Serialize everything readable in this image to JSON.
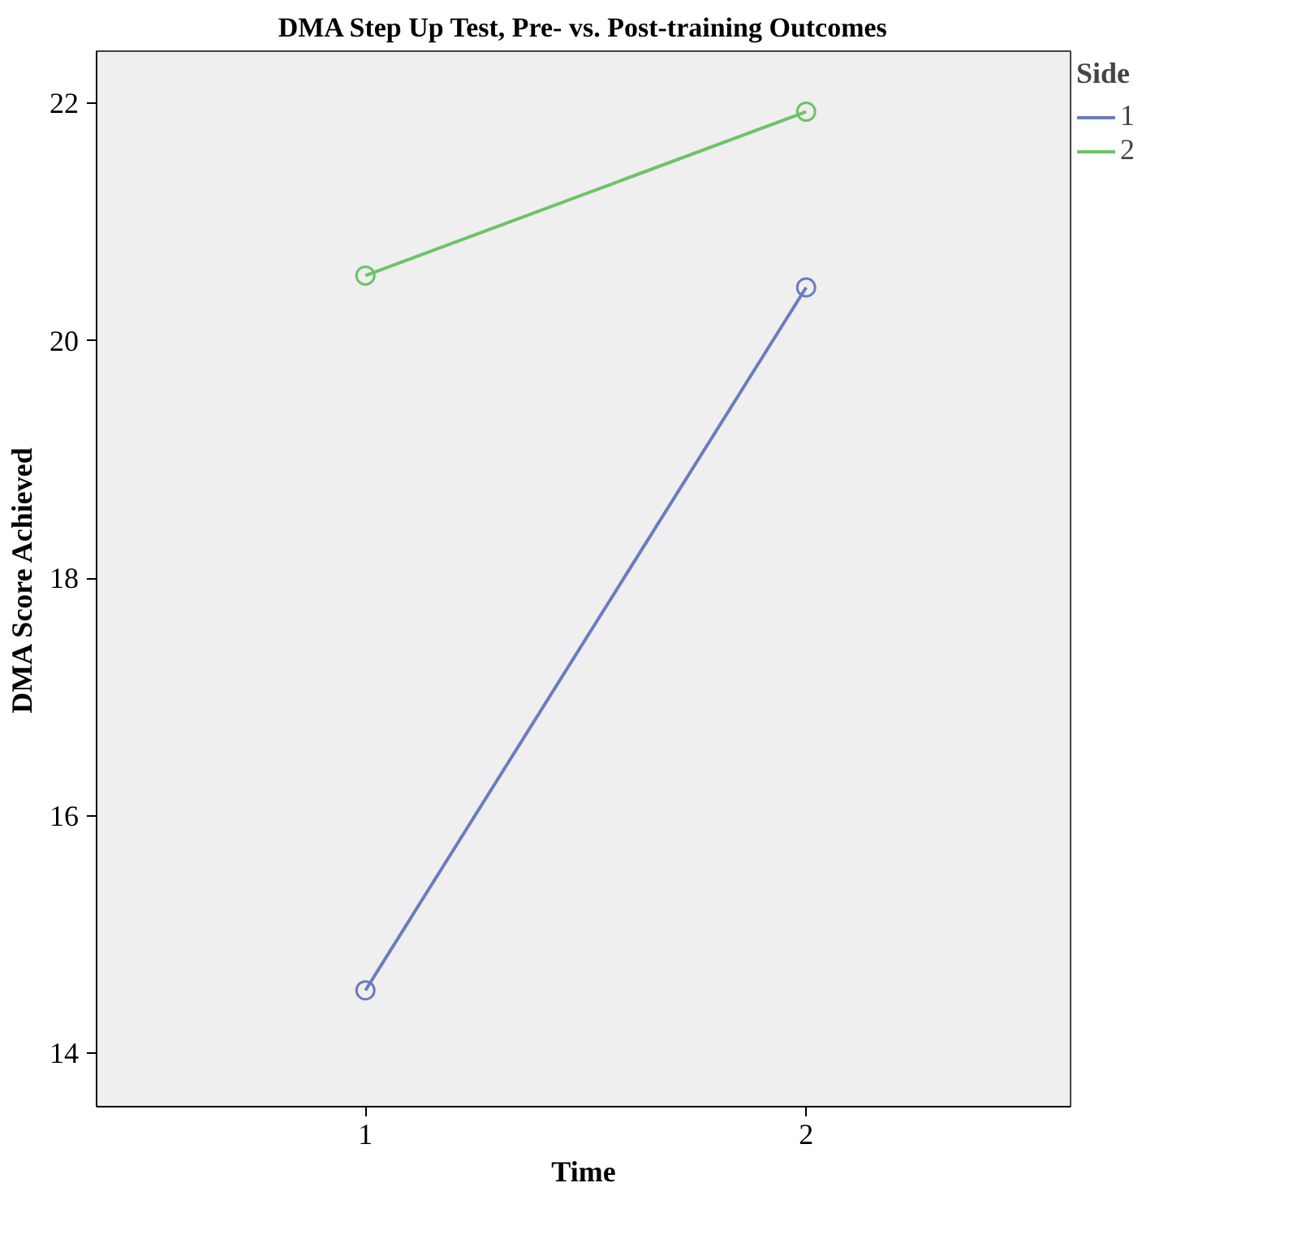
{
  "chart_data": {
    "type": "line",
    "title": "DMA Step Up Test, Pre- vs. Post-training Outcomes",
    "xlabel": "Time",
    "ylabel": "DMA Score Achieved",
    "legend_title": "Side",
    "x": [
      1,
      2
    ],
    "xlim": [
      0.39,
      2.6
    ],
    "xticks": [
      1,
      2
    ],
    "ylim": [
      13.55,
      22.44
    ],
    "yticks": [
      14,
      16,
      18,
      20,
      22
    ],
    "series": [
      {
        "name": "1",
        "color": "#6b7cc0",
        "values": [
          14.53,
          20.45
        ]
      },
      {
        "name": "2",
        "color": "#6cc466",
        "values": [
          20.55,
          21.93
        ]
      }
    ],
    "marker": "circle",
    "line_style": "solid",
    "legend": "right",
    "grid": false
  }
}
